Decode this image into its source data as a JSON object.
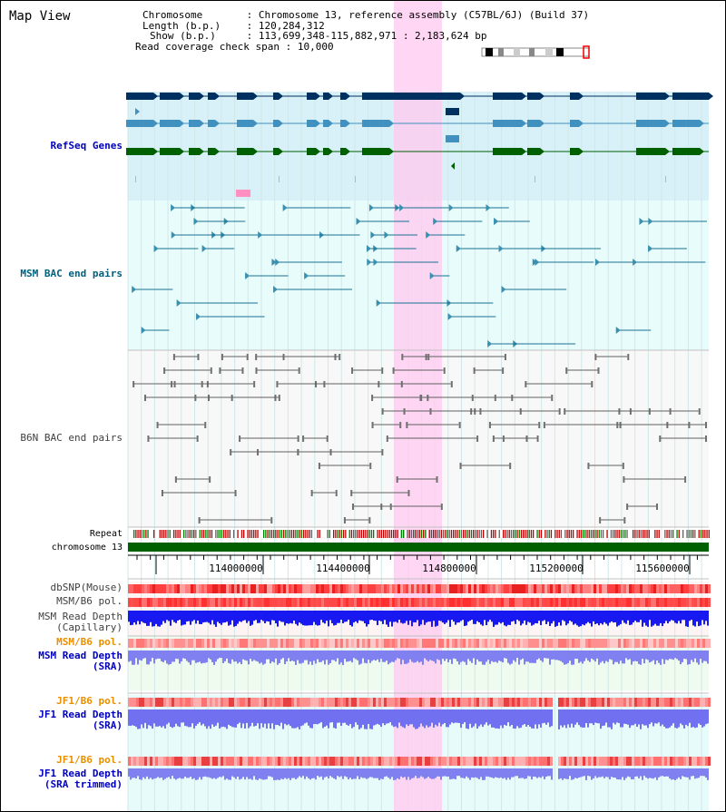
{
  "title": "Map View",
  "info": {
    "chromosome_label": "Chromosome",
    "chromosome_value": "Chromosome 13, reference assembly (C57BL/6J) (Build 37)",
    "length_label": "Length (b.p.)",
    "length_value": "120,284,312",
    "show_label": "Show (b.p.)",
    "show_value": "113,699,348-115,882,971 : 2,183,624 bp",
    "span_label": "Read coverage check span",
    "span_value": "10,000"
  },
  "tracks": {
    "refseq": "RefSeq Genes",
    "msm_bac": "MSM BAC end pairs",
    "b6n_bac": "B6N BAC end pairs",
    "repeat": "Repeat",
    "chromosome": "chromosome 13",
    "dbsnp": "dbSNP(Mouse)",
    "msm_b6_pol_1": "MSM/B6 pol.",
    "msm_read_depth_cap_1": "MSM Read Depth",
    "msm_read_depth_cap_2": "(Capillary)",
    "msm_b6_pol_2": "MSM/B6 pol.",
    "msm_read_depth_sra_1": "MSM Read Depth",
    "msm_read_depth_sra_2": "(SRA)",
    "jf1_b6_pol_1": "JF1/B6 pol.",
    "jf1_read_depth_sra_1": "JF1 Read Depth",
    "jf1_read_depth_sra_2": "(SRA)",
    "jf1_b6_pol_2": "JF1/B6 pol.",
    "jf1_read_depth_trim_1": "JF1 Read Depth",
    "jf1_read_depth_trim_2": "(SRA trimmed)"
  },
  "ruler_ticks": [
    "114000000",
    "114400000",
    "114800000",
    "115200000",
    "115600000"
  ],
  "colors": {
    "refseq_label": "#0000c0",
    "msm_label": "#006080",
    "b6n_label": "#404040",
    "pol_orange": "#e89000",
    "read_blue": "#0000c0",
    "highlight": "#ffccf0",
    "gene_dark": "#003060",
    "gene_mid": "#4090c0",
    "gene_green": "#006000",
    "chrom_green": "#006000"
  }
}
